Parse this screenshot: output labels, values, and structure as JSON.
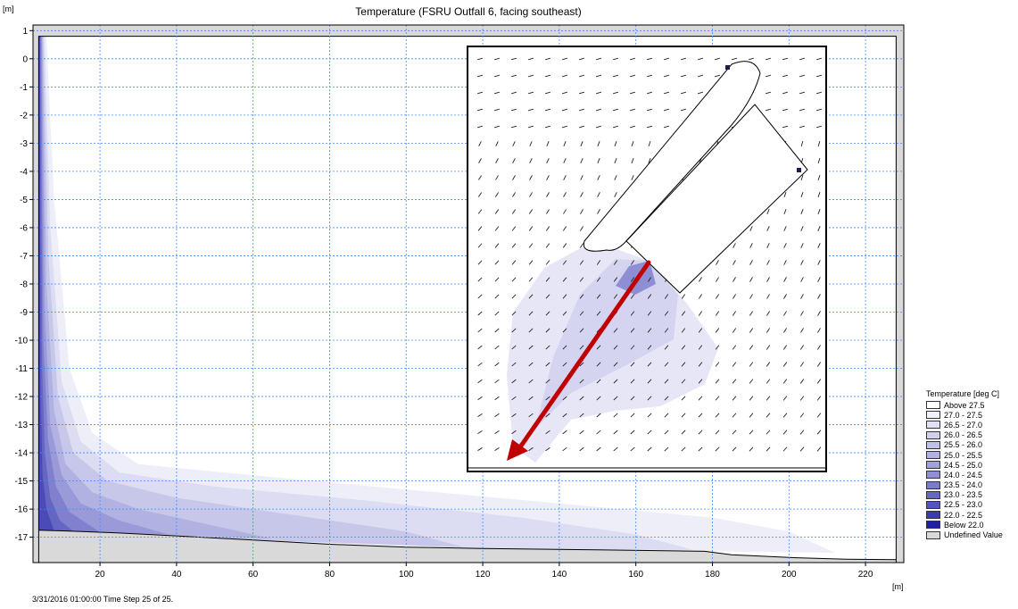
{
  "window": {
    "footer": "3/31/2016 01:00:00  Time Step 25 of 25."
  },
  "chart_data": {
    "type": "heatmap",
    "title": "Temperature (FSRU Outfall 6, facing southeast)",
    "x_unit": "[m]",
    "y_unit": "[m]",
    "xlim": [
      2.5,
      230
    ],
    "ylim": [
      -17.9,
      1.2
    ],
    "x_ticks": [
      20,
      40,
      60,
      80,
      100,
      120,
      140,
      160,
      180,
      200,
      220
    ],
    "x_tick_labels": [
      "20",
      "40",
      "60",
      "80",
      "100",
      "120",
      "140",
      "160",
      "180",
      "200",
      "220"
    ],
    "y_ticks": [
      1,
      0,
      -1,
      -2,
      -3,
      -4,
      -5,
      -6,
      -7,
      -8,
      -9,
      -10,
      -11,
      -12,
      -13,
      -14,
      -15,
      -16,
      -17
    ],
    "y_tick_labels": [
      "1",
      "0",
      "-1",
      "-2",
      "-3",
      "-4",
      "-5",
      "-6",
      "-7",
      "-8",
      "-9",
      "-10",
      "-11",
      "-12",
      "-13",
      "-14",
      "-15",
      "-16",
      "-17"
    ],
    "grid": true,
    "legend_position": "right",
    "legend": {
      "title": "Temperature [deg C]",
      "entries": [
        {
          "label": "Above 27.5",
          "color": "#ffffff"
        },
        {
          "label": "27.0 - 27.5",
          "color": "#f1f1fa"
        },
        {
          "label": "26.5 - 27.0",
          "color": "#e1e1f4"
        },
        {
          "label": "26.0 - 26.5",
          "color": "#d1d1ee"
        },
        {
          "label": "25.5 - 26.0",
          "color": "#c1c1e8"
        },
        {
          "label": "25.0 - 25.5",
          "color": "#b1b1e2"
        },
        {
          "label": "24.5 - 25.0",
          "color": "#a1a1dc"
        },
        {
          "label": "24.0 - 24.5",
          "color": "#8f8fd4"
        },
        {
          "label": "23.5 - 24.0",
          "color": "#7b7bcc"
        },
        {
          "label": "23.0 - 23.5",
          "color": "#6767c4"
        },
        {
          "label": "22.5 - 23.0",
          "color": "#5353bb"
        },
        {
          "label": "22.0 - 22.5",
          "color": "#3b3bb2"
        },
        {
          "label": "Below 22.0",
          "color": "#1f1fa8"
        },
        {
          "label": "Undefined Value",
          "color": "#d9d9d9"
        }
      ]
    },
    "seabed": [
      [
        4,
        -16.75
      ],
      [
        12,
        -16.78
      ],
      [
        25,
        -16.85
      ],
      [
        40,
        -16.95
      ],
      [
        60,
        -17.1
      ],
      [
        80,
        -17.25
      ],
      [
        100,
        -17.35
      ],
      [
        120,
        -17.4
      ],
      [
        150,
        -17.45
      ],
      [
        178,
        -17.5
      ],
      [
        185,
        -17.62
      ],
      [
        200,
        -17.72
      ],
      [
        215,
        -17.78
      ],
      [
        228,
        -17.8
      ]
    ],
    "surface_y": 0.8,
    "left_boundary_x": 4,
    "plume_bands": [
      {
        "color": "#eeeef9",
        "edge": [
          [
            4,
            0.8
          ],
          [
            6,
            0.8
          ],
          [
            8,
            -5
          ],
          [
            12,
            -11
          ],
          [
            18,
            -13.3
          ],
          [
            30,
            -14.4
          ],
          [
            60,
            -14.8
          ],
          [
            100,
            -15.3
          ],
          [
            140,
            -15.8
          ],
          [
            180,
            -16.3
          ],
          [
            200,
            -16.8
          ],
          [
            212,
            -17.55
          ],
          [
            180,
            -17.5
          ],
          [
            120,
            -17.4
          ],
          [
            60,
            -17.1
          ],
          [
            4,
            -16.75
          ]
        ]
      },
      {
        "color": "#dcdcf2",
        "edge": [
          [
            4,
            0.8
          ],
          [
            5.5,
            0.8
          ],
          [
            7,
            -6
          ],
          [
            10,
            -11.5
          ],
          [
            15,
            -13.6
          ],
          [
            25,
            -14.7
          ],
          [
            50,
            -15.2
          ],
          [
            90,
            -15.7
          ],
          [
            130,
            -16.3
          ],
          [
            160,
            -16.9
          ],
          [
            175,
            -17.45
          ],
          [
            120,
            -17.4
          ],
          [
            60,
            -17.1
          ],
          [
            4,
            -16.75
          ]
        ]
      },
      {
        "color": "#c7c7ea",
        "edge": [
          [
            4,
            0.8
          ],
          [
            5.2,
            0.8
          ],
          [
            6.5,
            -7
          ],
          [
            9,
            -12
          ],
          [
            13,
            -14
          ],
          [
            22,
            -15
          ],
          [
            40,
            -15.6
          ],
          [
            70,
            -16.2
          ],
          [
            100,
            -16.8
          ],
          [
            115,
            -17.35
          ],
          [
            60,
            -17.1
          ],
          [
            4,
            -16.75
          ]
        ]
      },
      {
        "color": "#b2b2e2",
        "edge": [
          [
            4,
            0.8
          ],
          [
            5,
            0.8
          ],
          [
            6,
            -8
          ],
          [
            8,
            -12.5
          ],
          [
            11,
            -14.4
          ],
          [
            18,
            -15.4
          ],
          [
            30,
            -16
          ],
          [
            50,
            -16.6
          ],
          [
            65,
            -17.05
          ],
          [
            4,
            -16.75
          ]
        ]
      },
      {
        "color": "#9a9ad9",
        "edge": [
          [
            4,
            0.8
          ],
          [
            4.8,
            0.8
          ],
          [
            5.6,
            -9
          ],
          [
            7,
            -13
          ],
          [
            10,
            -14.8
          ],
          [
            15,
            -15.8
          ],
          [
            25,
            -16.4
          ],
          [
            38,
            -16.9
          ],
          [
            4,
            -16.75
          ]
        ]
      },
      {
        "color": "#8080ce",
        "edge": [
          [
            4,
            0.8
          ],
          [
            4.6,
            0.8
          ],
          [
            5.2,
            -10
          ],
          [
            6.4,
            -13.5
          ],
          [
            8.5,
            -15.2
          ],
          [
            12,
            -16.1
          ],
          [
            20,
            -16.82
          ],
          [
            4,
            -16.75
          ]
        ]
      },
      {
        "color": "#6565c3",
        "edge": [
          [
            4,
            0.8
          ],
          [
            4.4,
            0.8
          ],
          [
            4.9,
            -11
          ],
          [
            5.6,
            -14
          ],
          [
            7,
            -15.6
          ],
          [
            9.5,
            -16.4
          ],
          [
            13,
            -16.78
          ],
          [
            4,
            -16.75
          ]
        ]
      },
      {
        "color": "#4b4bb8",
        "edge": [
          [
            4,
            0.8
          ],
          [
            4.25,
            0.8
          ],
          [
            4.5,
            -12
          ],
          [
            5,
            -14.8
          ],
          [
            6,
            -16
          ],
          [
            8,
            -16.76
          ],
          [
            4,
            -16.75
          ]
        ]
      }
    ],
    "inset": {
      "flow_field": "vectors",
      "plume_color": "#c8c8ec"
    }
  }
}
